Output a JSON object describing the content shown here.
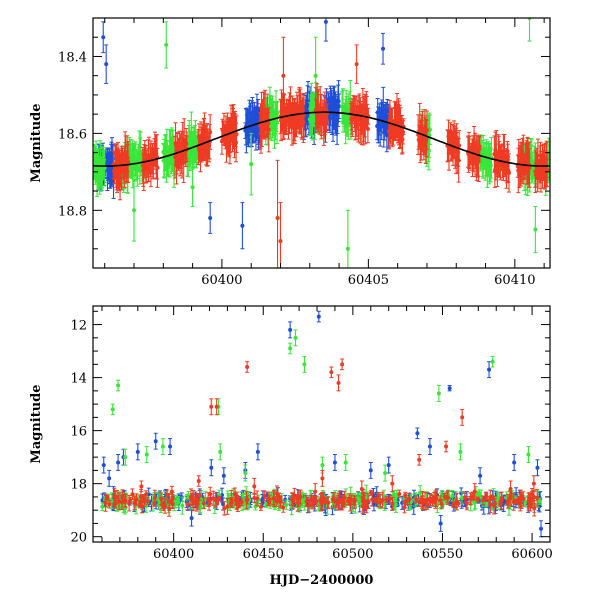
{
  "colors": {
    "blue": "#1f4fd8",
    "green": "#39e639",
    "red": "#ef3b24",
    "model": "#000000"
  },
  "chart_data": [
    {
      "type": "scatter",
      "panel": "top",
      "xlabel": "",
      "ylabel": "Magnitude",
      "xlim": [
        60395.6,
        60411.2
      ],
      "ylim": [
        18.95,
        18.3
      ],
      "y_inverted": true,
      "xticks": [
        60400,
        60405,
        60410
      ],
      "yticks": [
        18.4,
        18.6,
        18.8
      ],
      "xtick_labels": [
        "60400",
        "60405",
        "60410"
      ],
      "ytick_labels": [
        "18.4",
        "18.6",
        "18.8"
      ],
      "model_curve": {
        "form": "sinusoid",
        "mean_mag": 18.615,
        "amplitude": 0.07,
        "phase_peak_x": 60403.5,
        "period_days": 15.0,
        "color": "#000000"
      },
      "series": [
        {
          "color": "#1f4fd8",
          "segments": [
            [
              60395.8,
              60396.3
            ],
            [
              60400.8,
              60401.3
            ],
            [
              60402.8,
              60403.2
            ],
            [
              60403.5,
              60404.0
            ],
            [
              60405.3,
              60405.7
            ]
          ],
          "outliers": [
            [
              60395.95,
              18.35,
              0.04
            ],
            [
              60396.05,
              18.42,
              0.05
            ],
            [
              60399.6,
              18.82,
              0.04
            ],
            [
              60400.7,
              18.84,
              0.06
            ],
            [
              60403.55,
              18.31,
              0.05
            ],
            [
              60405.5,
              18.38,
              0.04
            ]
          ]
        },
        {
          "color": "#39e639",
          "segments": [
            [
              60395.6,
              60396.0
            ],
            [
              60396.6,
              60397.3
            ],
            [
              60398.0,
              60398.4
            ],
            [
              60398.8,
              60399.2
            ],
            [
              60401.5,
              60401.9
            ],
            [
              60403.0,
              60403.3
            ],
            [
              60404.1,
              60404.4
            ],
            [
              60406.8,
              60407.1
            ],
            [
              60408.8,
              60409.2
            ],
            [
              60410.3,
              60410.7
            ],
            [
              60411.0,
              60411.2
            ]
          ],
          "outliers": [
            [
              60397.0,
              18.8,
              0.08
            ],
            [
              60398.1,
              18.37,
              0.06
            ],
            [
              60399.0,
              18.74,
              0.05
            ],
            [
              60401.0,
              18.68,
              0.08
            ],
            [
              60403.2,
              18.45,
              0.1
            ],
            [
              60404.3,
              18.9,
              0.1
            ],
            [
              60410.5,
              18.3,
              0.06
            ],
            [
              60410.7,
              18.85,
              0.06
            ]
          ]
        },
        {
          "color": "#ef3b24",
          "segments": [
            [
              60396.3,
              60396.8
            ],
            [
              60397.3,
              60397.8
            ],
            [
              60398.4,
              60398.8
            ],
            [
              60399.2,
              60399.6
            ],
            [
              60400.0,
              60400.5
            ],
            [
              60401.3,
              60401.6
            ],
            [
              60402.0,
              60402.8
            ],
            [
              60403.2,
              60403.6
            ],
            [
              60404.4,
              60405.0
            ],
            [
              60405.7,
              60406.2
            ],
            [
              60406.7,
              60407.0
            ],
            [
              60407.7,
              60408.1
            ],
            [
              60408.4,
              60408.8
            ],
            [
              60409.3,
              60409.8
            ],
            [
              60410.1,
              60410.5
            ],
            [
              60410.7,
              60411.1
            ]
          ],
          "outliers": [
            [
              60401.9,
              18.82,
              0.15
            ],
            [
              60402.0,
              18.88,
              0.1
            ],
            [
              60402.1,
              18.45,
              0.1
            ],
            [
              60404.6,
              18.42,
              0.05
            ]
          ]
        }
      ]
    },
    {
      "type": "scatter",
      "panel": "bottom",
      "xlabel": "HJD−2400000",
      "ylabel": "Magnitude",
      "xlim": [
        60355,
        60610
      ],
      "ylim": [
        20.2,
        11.3
      ],
      "y_inverted": true,
      "xticks": [
        60400,
        60450,
        60500,
        60550,
        60600
      ],
      "yticks": [
        12,
        14,
        16,
        18,
        20
      ],
      "xtick_labels": [
        "60400",
        "60450",
        "60500",
        "60550",
        "60600"
      ],
      "ytick_labels": [
        "12",
        "14",
        "16",
        "18",
        "20"
      ],
      "baseline_mag": 18.65,
      "series": [
        {
          "color": "#1f4fd8",
          "outliers": [
            [
              60361,
              17.3,
              0.3
            ],
            [
              60364,
              17.8,
              0.3
            ],
            [
              60369,
              17.2,
              0.3
            ],
            [
              60372,
              17.0,
              0.3
            ],
            [
              60380,
              16.8,
              0.3
            ],
            [
              60390,
              16.4,
              0.3
            ],
            [
              60398,
              16.6,
              0.3
            ],
            [
              60410,
              19.3,
              0.3
            ],
            [
              60421,
              17.4,
              0.3
            ],
            [
              60428,
              17.7,
              0.3
            ],
            [
              60440,
              17.5,
              0.3
            ],
            [
              60447,
              16.8,
              0.3
            ],
            [
              60465,
              12.2,
              0.3
            ],
            [
              60481,
              11.7,
              0.2
            ],
            [
              60490,
              17.2,
              0.3
            ],
            [
              60510,
              17.5,
              0.3
            ],
            [
              60520,
              17.3,
              0.3
            ],
            [
              60536,
              16.1,
              0.2
            ],
            [
              60543,
              16.6,
              0.3
            ],
            [
              60549,
              19.5,
              0.3
            ],
            [
              60554,
              14.4,
              0.1
            ],
            [
              60571,
              17.7,
              0.3
            ],
            [
              60576,
              13.7,
              0.3
            ],
            [
              60590,
              17.2,
              0.3
            ],
            [
              60605,
              19.7,
              0.3
            ],
            [
              60603,
              17.4,
              0.3
            ]
          ]
        },
        {
          "color": "#39e639",
          "outliers": [
            [
              60366,
              15.2,
              0.2
            ],
            [
              60369,
              14.3,
              0.2
            ],
            [
              60373,
              17.0,
              0.3
            ],
            [
              60385,
              16.9,
              0.3
            ],
            [
              60394,
              16.6,
              0.3
            ],
            [
              60425,
              15.1,
              0.3
            ],
            [
              60426,
              16.8,
              0.3
            ],
            [
              60440,
              17.6,
              0.3
            ],
            [
              60465,
              12.9,
              0.2
            ],
            [
              60468,
              12.5,
              0.3
            ],
            [
              60473,
              13.5,
              0.3
            ],
            [
              60483,
              17.3,
              0.3
            ],
            [
              60496,
              17.2,
              0.3
            ],
            [
              60518,
              17.6,
              0.3
            ],
            [
              60548,
              14.6,
              0.3
            ],
            [
              60560,
              16.8,
              0.3
            ],
            [
              60578,
              13.4,
              0.2
            ],
            [
              60598,
              16.9,
              0.3
            ]
          ]
        },
        {
          "color": "#ef3b24",
          "outliers": [
            [
              60377,
              18.4,
              0.2
            ],
            [
              60382,
              18.1,
              0.2
            ],
            [
              60399,
              18.3,
              0.2
            ],
            [
              60414,
              17.9,
              0.2
            ],
            [
              60421,
              15.1,
              0.3
            ],
            [
              60424,
              15.1,
              0.3
            ],
            [
              60441,
              13.6,
              0.2
            ],
            [
              60445,
              18.1,
              0.3
            ],
            [
              60479,
              18.3,
              0.3
            ],
            [
              60483,
              17.8,
              0.3
            ],
            [
              60488,
              13.8,
              0.2
            ],
            [
              60492,
              14.2,
              0.3
            ],
            [
              60494,
              13.5,
              0.2
            ],
            [
              60505,
              18.2,
              0.3
            ],
            [
              60522,
              18.0,
              0.3
            ],
            [
              60537,
              17.1,
              0.2
            ],
            [
              60552,
              16.6,
              0.2
            ],
            [
              60561,
              15.5,
              0.3
            ],
            [
              60568,
              18.3,
              0.3
            ],
            [
              60588,
              18.2,
              0.3
            ],
            [
              60601,
              18.0,
              0.3
            ]
          ]
        }
      ]
    }
  ]
}
